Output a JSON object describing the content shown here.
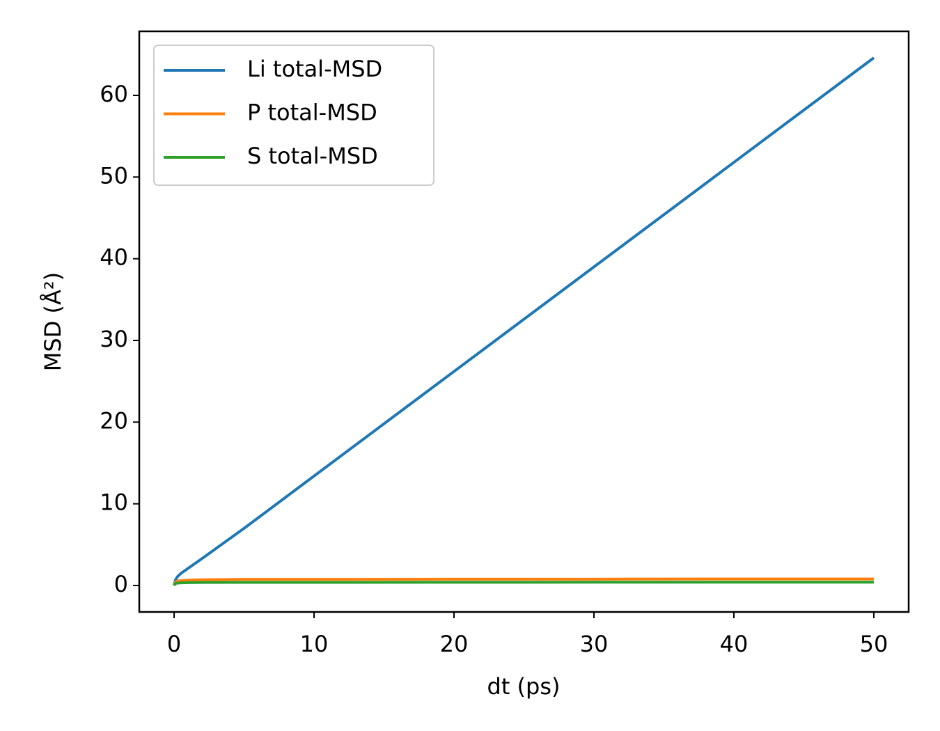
{
  "chart_data": {
    "type": "line",
    "xlabel": "dt (ps)",
    "ylabel": "MSD (Å²)",
    "x": [
      0,
      0.1,
      0.25,
      0.5,
      1,
      2,
      5,
      10,
      20,
      30,
      40,
      50
    ],
    "series": [
      {
        "name": "Li total-MSD",
        "color": "#1f77b4",
        "values": [
          0,
          0.7,
          1.1,
          1.5,
          2.1,
          3.3,
          7.0,
          13.4,
          26.2,
          39.0,
          51.8,
          64.6
        ]
      },
      {
        "name": "P total-MSD",
        "color": "#ff7f0e",
        "values": [
          0,
          0.4,
          0.55,
          0.6,
          0.65,
          0.7,
          0.75,
          0.75,
          0.78,
          0.78,
          0.8,
          0.8
        ]
      },
      {
        "name": "S total-MSD",
        "color": "#2ca02c",
        "values": [
          0,
          0.25,
          0.3,
          0.33,
          0.35,
          0.37,
          0.38,
          0.38,
          0.39,
          0.4,
          0.4,
          0.4
        ]
      }
    ],
    "xlim": [
      -2.49,
      52.49
    ],
    "ylim": [
      -3.24,
      67.84
    ],
    "xticks": [
      0,
      10,
      20,
      30,
      40,
      50
    ],
    "yticks": [
      0,
      10,
      20,
      30,
      40,
      50,
      60
    ],
    "legend": "upper left",
    "grid": false
  }
}
